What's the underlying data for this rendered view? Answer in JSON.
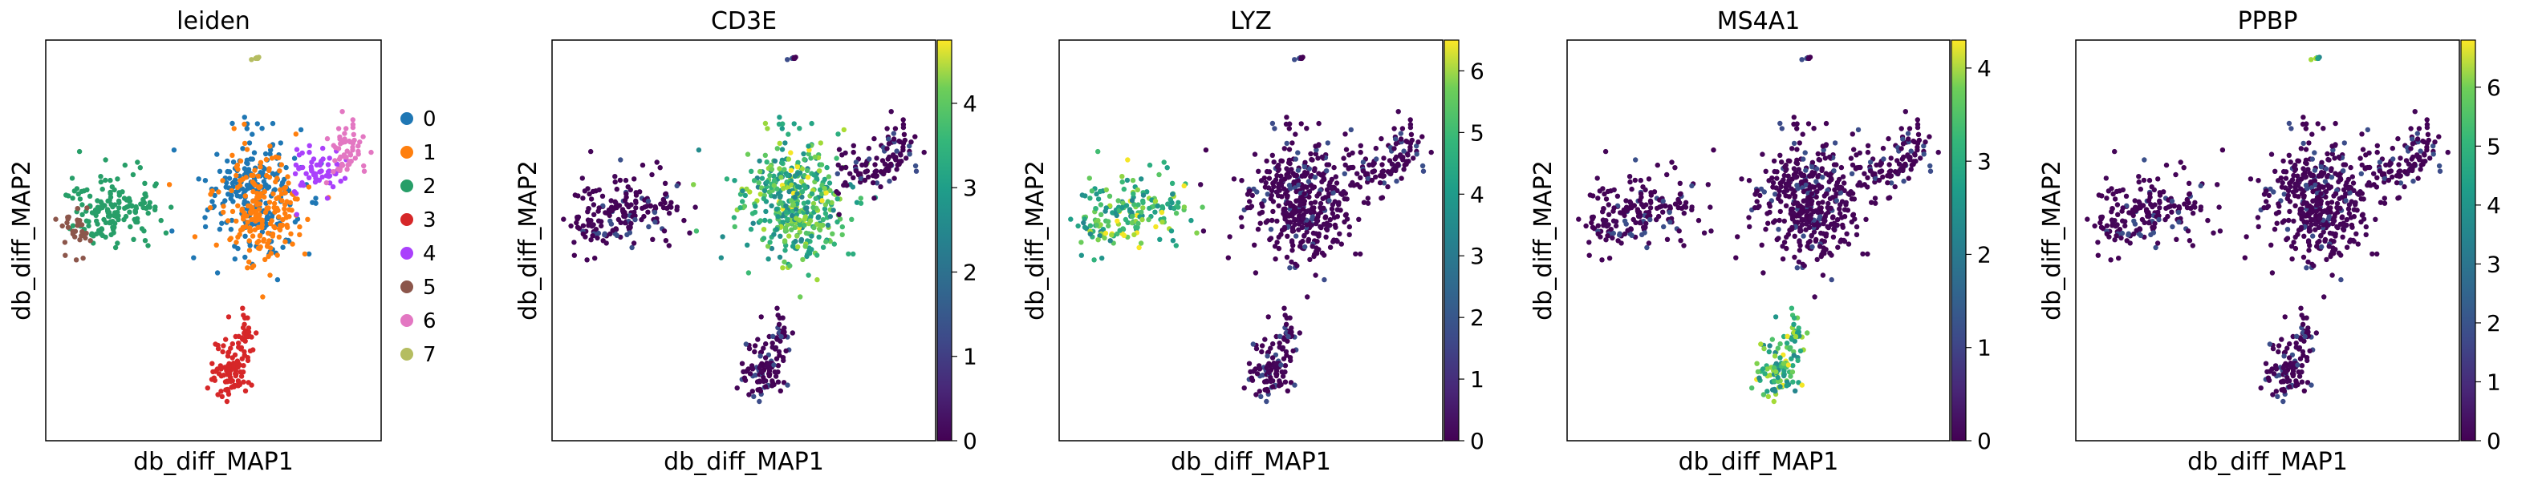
{
  "chart_data": [
    {
      "type": "scatter",
      "title": "leiden",
      "xlabel": "db_diff_MAP1",
      "ylabel": "db_diff_MAP2",
      "color_mode": "categorical",
      "legend": {
        "placement": "right",
        "entries": [
          "0",
          "1",
          "2",
          "3",
          "4",
          "5",
          "6",
          "7"
        ],
        "colors": [
          "#1f77b4",
          "#ff7f0e",
          "#279e68",
          "#d62728",
          "#aa40fc",
          "#8c564b",
          "#e377c2",
          "#b5bd61"
        ]
      },
      "grid": false,
      "x_ticks_shown": false,
      "y_ticks_shown": false
    },
    {
      "type": "scatter",
      "title": "CD3E",
      "xlabel": "db_diff_MAP1",
      "ylabel": "db_diff_MAP2",
      "color_mode": "continuous",
      "colormap": "viridis",
      "colorbar": {
        "min": 0,
        "max": 4.75,
        "ticks": [
          "0",
          "1",
          "2",
          "3",
          "4"
        ]
      },
      "high_expression_clusters": [
        "0",
        "1"
      ],
      "grid": false
    },
    {
      "type": "scatter",
      "title": "LYZ",
      "xlabel": "db_diff_MAP1",
      "ylabel": "db_diff_MAP2",
      "color_mode": "continuous",
      "colormap": "viridis",
      "colorbar": {
        "min": 0,
        "max": 6.5,
        "ticks": [
          "0",
          "1",
          "2",
          "3",
          "4",
          "5",
          "6"
        ]
      },
      "high_expression_clusters": [
        "2",
        "5"
      ],
      "grid": false
    },
    {
      "type": "scatter",
      "title": "MS4A1",
      "xlabel": "db_diff_MAP1",
      "ylabel": "db_diff_MAP2",
      "color_mode": "continuous",
      "colormap": "viridis",
      "colorbar": {
        "min": 0,
        "max": 4.3,
        "ticks": [
          "0",
          "1",
          "2",
          "3",
          "4"
        ]
      },
      "high_expression_clusters": [
        "3"
      ],
      "grid": false
    },
    {
      "type": "scatter",
      "title": "PPBP",
      "xlabel": "db_diff_MAP1",
      "ylabel": "db_diff_MAP2",
      "color_mode": "continuous",
      "colormap": "viridis",
      "colorbar": {
        "min": 0,
        "max": 6.8,
        "ticks": [
          "0",
          "1",
          "2",
          "3",
          "4",
          "5",
          "6"
        ]
      },
      "high_expression_clusters": [
        "7"
      ],
      "grid": false
    }
  ]
}
